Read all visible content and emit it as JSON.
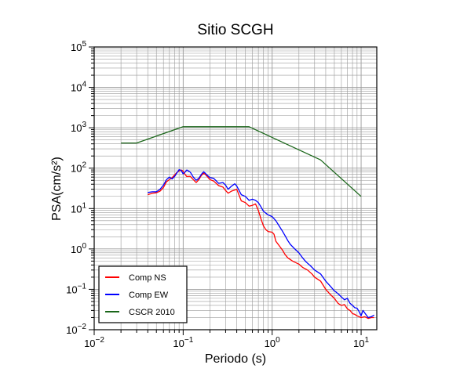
{
  "chart_data": {
    "type": "line",
    "title": "Sitio SCGH",
    "xlabel": "Periodo (s)",
    "ylabel": "PSA(cm/s²)",
    "x_scale": "log",
    "y_scale": "log",
    "xlim": [
      0.01,
      15
    ],
    "ylim": [
      0.01,
      100000
    ],
    "grid": true,
    "legend_position": "bottom-left",
    "x_ticks": [
      {
        "value": 0.01,
        "base": "10",
        "exp": "−2"
      },
      {
        "value": 0.1,
        "base": "10",
        "exp": "−1"
      },
      {
        "value": 1,
        "base": "10",
        "exp": "0"
      },
      {
        "value": 10,
        "base": "10",
        "exp": "1"
      }
    ],
    "y_ticks": [
      {
        "value": 0.01,
        "base": "10",
        "exp": "−2"
      },
      {
        "value": 0.1,
        "base": "10",
        "exp": "−1"
      },
      {
        "value": 1,
        "base": "10",
        "exp": "0"
      },
      {
        "value": 10,
        "base": "10",
        "exp": "1"
      },
      {
        "value": 100,
        "base": "10",
        "exp": "2"
      },
      {
        "value": 1000,
        "base": "10",
        "exp": "3"
      },
      {
        "value": 10000,
        "base": "10",
        "exp": "4"
      },
      {
        "value": 100000,
        "base": "10",
        "exp": "5"
      }
    ],
    "series": [
      {
        "name": "Comp NS",
        "color": "#ff0000",
        "points": [
          [
            0.04,
            22
          ],
          [
            0.045,
            24
          ],
          [
            0.05,
            24.5
          ],
          [
            0.055,
            27
          ],
          [
            0.06,
            33
          ],
          [
            0.065,
            46
          ],
          [
            0.07,
            52
          ],
          [
            0.075,
            58
          ],
          [
            0.08,
            68
          ],
          [
            0.085,
            78
          ],
          [
            0.09,
            86
          ],
          [
            0.095,
            90
          ],
          [
            0.1,
            84
          ],
          [
            0.105,
            70
          ],
          [
            0.11,
            62
          ],
          [
            0.12,
            63
          ],
          [
            0.13,
            52
          ],
          [
            0.14,
            44
          ],
          [
            0.15,
            52
          ],
          [
            0.16,
            66
          ],
          [
            0.17,
            75
          ],
          [
            0.18,
            68
          ],
          [
            0.2,
            52
          ],
          [
            0.22,
            48
          ],
          [
            0.25,
            37
          ],
          [
            0.28,
            34
          ],
          [
            0.3,
            28
          ],
          [
            0.32,
            24
          ],
          [
            0.35,
            27
          ],
          [
            0.4,
            30
          ],
          [
            0.45,
            15.5
          ],
          [
            0.5,
            14
          ],
          [
            0.55,
            11.5
          ],
          [
            0.6,
            12
          ],
          [
            0.65,
            13
          ],
          [
            0.7,
            9
          ],
          [
            0.75,
            5.5
          ],
          [
            0.8,
            3.7
          ],
          [
            0.85,
            3
          ],
          [
            0.9,
            2.7
          ],
          [
            1.0,
            2.6
          ],
          [
            1.05,
            2.3
          ],
          [
            1.1,
            1.55
          ],
          [
            1.2,
            1.2
          ],
          [
            1.3,
            0.95
          ],
          [
            1.4,
            0.72
          ],
          [
            1.5,
            0.6
          ],
          [
            1.7,
            0.5
          ],
          [
            2.0,
            0.42
          ],
          [
            2.2,
            0.35
          ],
          [
            2.5,
            0.3
          ],
          [
            2.8,
            0.24
          ],
          [
            3.0,
            0.2
          ],
          [
            3.5,
            0.16
          ],
          [
            4.0,
            0.1
          ],
          [
            4.5,
            0.075
          ],
          [
            5.0,
            0.06
          ],
          [
            5.5,
            0.045
          ],
          [
            6.0,
            0.04
          ],
          [
            6.5,
            0.042
          ],
          [
            7.0,
            0.033
          ],
          [
            7.5,
            0.03
          ],
          [
            8.0,
            0.025
          ],
          [
            8.5,
            0.024
          ],
          [
            9.0,
            0.022
          ],
          [
            10.0,
            0.02
          ],
          [
            11.0,
            0.021
          ],
          [
            12.0,
            0.019
          ],
          [
            13.0,
            0.02
          ],
          [
            14.0,
            0.02
          ]
        ]
      },
      {
        "name": "Comp EW",
        "color": "#0000ff",
        "points": [
          [
            0.04,
            25
          ],
          [
            0.045,
            26
          ],
          [
            0.05,
            26
          ],
          [
            0.055,
            30
          ],
          [
            0.06,
            38
          ],
          [
            0.065,
            52
          ],
          [
            0.07,
            60
          ],
          [
            0.075,
            54
          ],
          [
            0.08,
            62
          ],
          [
            0.085,
            76
          ],
          [
            0.09,
            92
          ],
          [
            0.095,
            88
          ],
          [
            0.1,
            72
          ],
          [
            0.105,
            80
          ],
          [
            0.11,
            90
          ],
          [
            0.12,
            80
          ],
          [
            0.13,
            60
          ],
          [
            0.14,
            50
          ],
          [
            0.15,
            56
          ],
          [
            0.16,
            70
          ],
          [
            0.17,
            82
          ],
          [
            0.18,
            72
          ],
          [
            0.2,
            58
          ],
          [
            0.22,
            56
          ],
          [
            0.25,
            42
          ],
          [
            0.28,
            44
          ],
          [
            0.3,
            38
          ],
          [
            0.32,
            30
          ],
          [
            0.35,
            36
          ],
          [
            0.38,
            41
          ],
          [
            0.4,
            36
          ],
          [
            0.45,
            22
          ],
          [
            0.5,
            20
          ],
          [
            0.55,
            16
          ],
          [
            0.6,
            17
          ],
          [
            0.65,
            16
          ],
          [
            0.7,
            14
          ],
          [
            0.75,
            11
          ],
          [
            0.8,
            8.5
          ],
          [
            0.9,
            7
          ],
          [
            1.0,
            6.3
          ],
          [
            1.1,
            5
          ],
          [
            1.2,
            3.7
          ],
          [
            1.3,
            2.8
          ],
          [
            1.4,
            2.1
          ],
          [
            1.5,
            1.6
          ],
          [
            1.6,
            1.3
          ],
          [
            1.8,
            1.0
          ],
          [
            2.0,
            0.8
          ],
          [
            2.2,
            0.6
          ],
          [
            2.4,
            0.48
          ],
          [
            2.7,
            0.38
          ],
          [
            3.0,
            0.3
          ],
          [
            3.5,
            0.24
          ],
          [
            4.0,
            0.16
          ],
          [
            4.5,
            0.12
          ],
          [
            5.0,
            0.092
          ],
          [
            5.5,
            0.078
          ],
          [
            6.0,
            0.065
          ],
          [
            6.5,
            0.055
          ],
          [
            7.0,
            0.06
          ],
          [
            7.5,
            0.045
          ],
          [
            8.0,
            0.04
          ],
          [
            8.5,
            0.035
          ],
          [
            9.0,
            0.034
          ],
          [
            9.5,
            0.028
          ],
          [
            10.0,
            0.022
          ],
          [
            10.5,
            0.03
          ],
          [
            11.0,
            0.026
          ],
          [
            12.0,
            0.02
          ],
          [
            13.0,
            0.021
          ],
          [
            14.0,
            0.023
          ]
        ]
      },
      {
        "name": "CSCR 2010",
        "color": "#1a6619",
        "points": [
          [
            0.02,
            420
          ],
          [
            0.03,
            420
          ],
          [
            0.1,
            1060
          ],
          [
            0.55,
            1060
          ],
          [
            3.5,
            160
          ],
          [
            10.0,
            20
          ]
        ]
      }
    ]
  }
}
